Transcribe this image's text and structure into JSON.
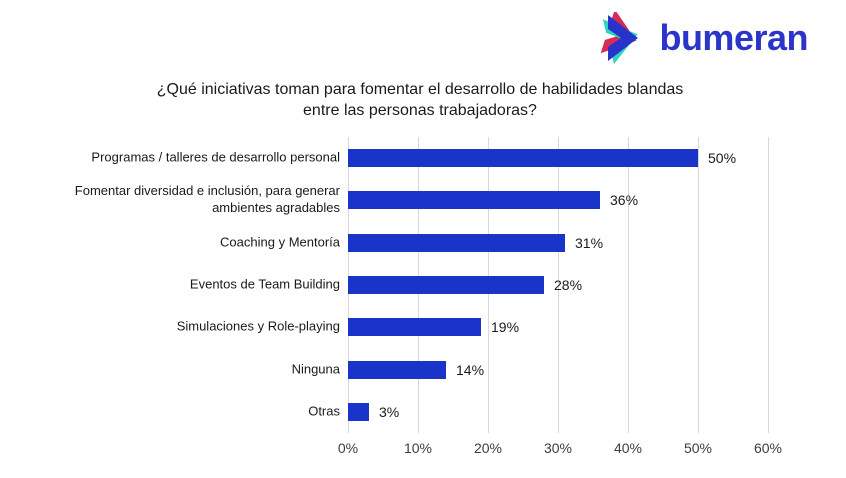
{
  "logo": {
    "text": "bumeran",
    "icon": "bumeran-chevron-icon",
    "colors": {
      "text_blue": "#2b35c9",
      "chevron_blue": "#2733c9",
      "chevron_teal": "#2bd4c3",
      "chevron_red": "#d52b55"
    }
  },
  "title": {
    "lines": [
      "¿Qué iniciativas toman para fomentar el desarrollo de habilidades blandas",
      "entre las personas trabajadoras?"
    ]
  },
  "chart_data": {
    "type": "bar",
    "orientation": "horizontal",
    "title": "¿Qué iniciativas toman para fomentar el desarrollo de habilidades blandas entre las personas trabajadoras?",
    "categories": [
      "Programas / talleres de desarrollo personal",
      "Fomentar diversidad e inclusión, para generar ambientes agradables",
      "Coaching y Mentoría",
      "Eventos de Team Building",
      "Simulaciones y Role-playing",
      "Ninguna",
      "Otras"
    ],
    "values": [
      50,
      36,
      31,
      28,
      19,
      14,
      3
    ],
    "value_suffix": "%",
    "xlabel": "",
    "ylabel": "",
    "xlim": [
      0,
      60
    ],
    "x_ticks": [
      "0%",
      "10%",
      "20%",
      "30%",
      "40%",
      "50%",
      "60%"
    ],
    "bar_color": "#1a33c8",
    "gridline_color": "#d9d9d9",
    "grid": true,
    "legend_position": "none"
  }
}
